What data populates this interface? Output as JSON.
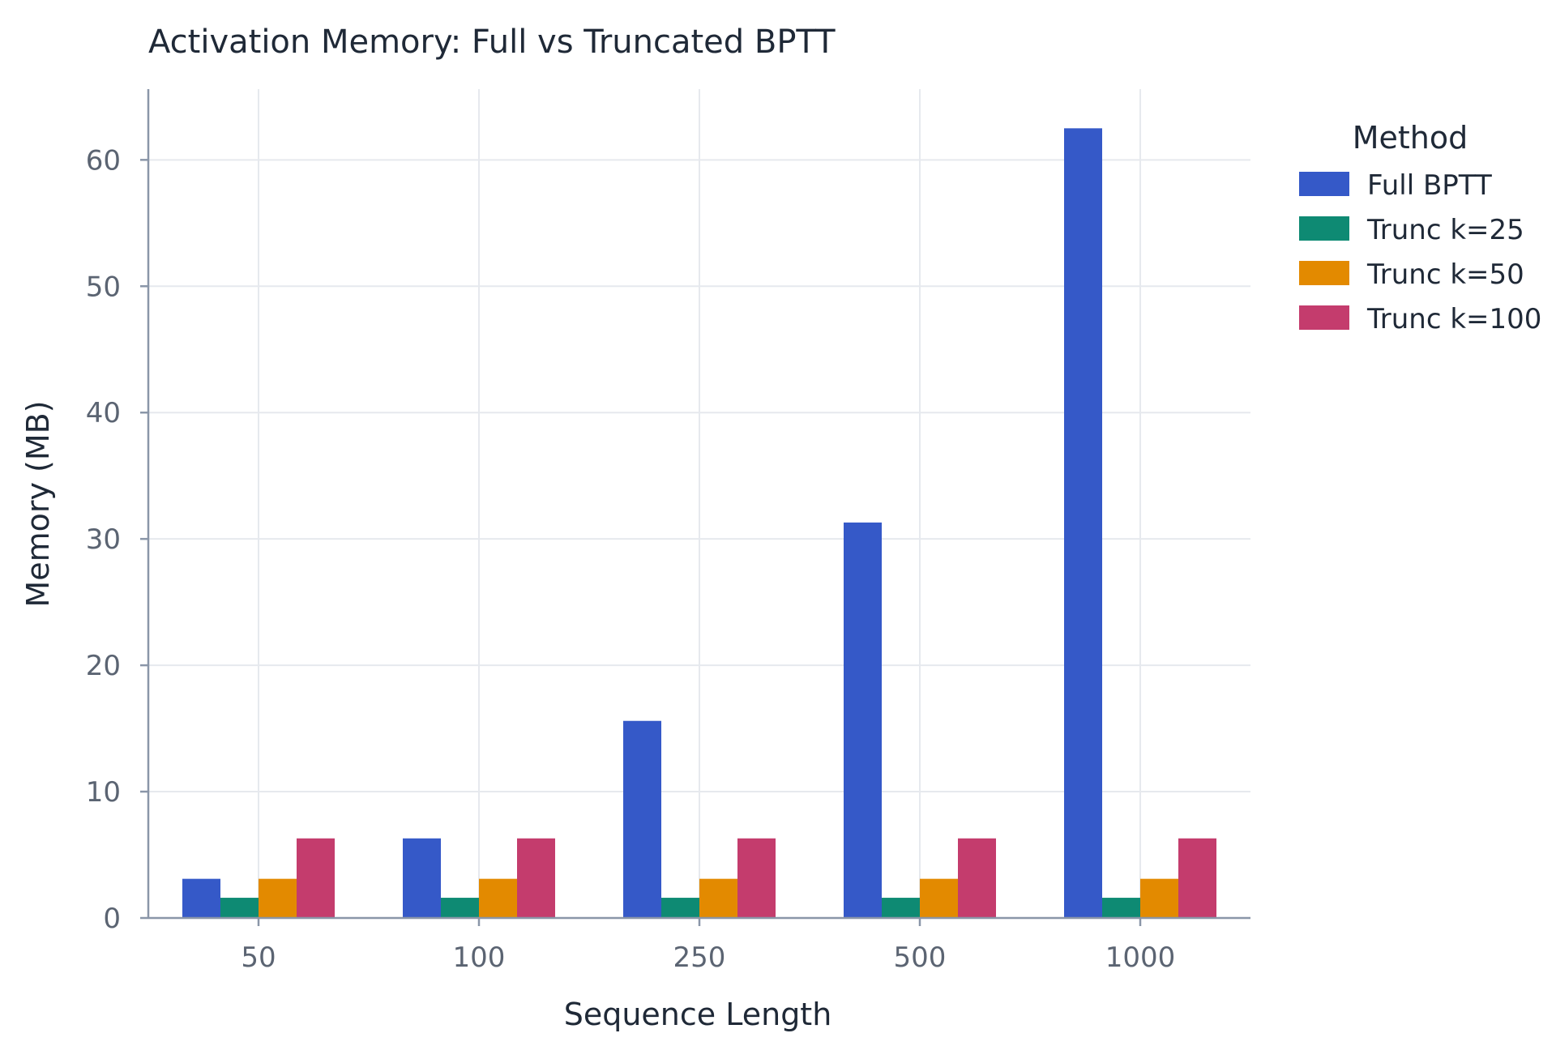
{
  "chart_data": {
    "type": "bar",
    "title": "Activation Memory: Full vs Truncated BPTT",
    "xlabel": "Sequence Length",
    "ylabel": "Memory (MB)",
    "categories": [
      "50",
      "100",
      "250",
      "500",
      "1000"
    ],
    "ylim": [
      0,
      65.6
    ],
    "yticks": [
      0,
      10,
      20,
      30,
      40,
      50,
      60
    ],
    "grid": true,
    "legend": {
      "title": "Method",
      "placement": "right"
    },
    "series": [
      {
        "name": "Full BPTT",
        "color": "#3559c8",
        "values": [
          3.1,
          6.3,
          15.6,
          31.3,
          62.5
        ]
      },
      {
        "name": "Trunc k=25",
        "color": "#0e8a73",
        "values": [
          1.6,
          1.6,
          1.6,
          1.6,
          1.6
        ]
      },
      {
        "name": "Trunc k=50",
        "color": "#e38a00",
        "values": [
          3.1,
          3.1,
          3.1,
          3.1,
          3.1
        ]
      },
      {
        "name": "Trunc k=100",
        "color": "#c43c6d",
        "values": [
          6.3,
          6.3,
          6.3,
          6.3,
          6.3
        ]
      }
    ]
  }
}
